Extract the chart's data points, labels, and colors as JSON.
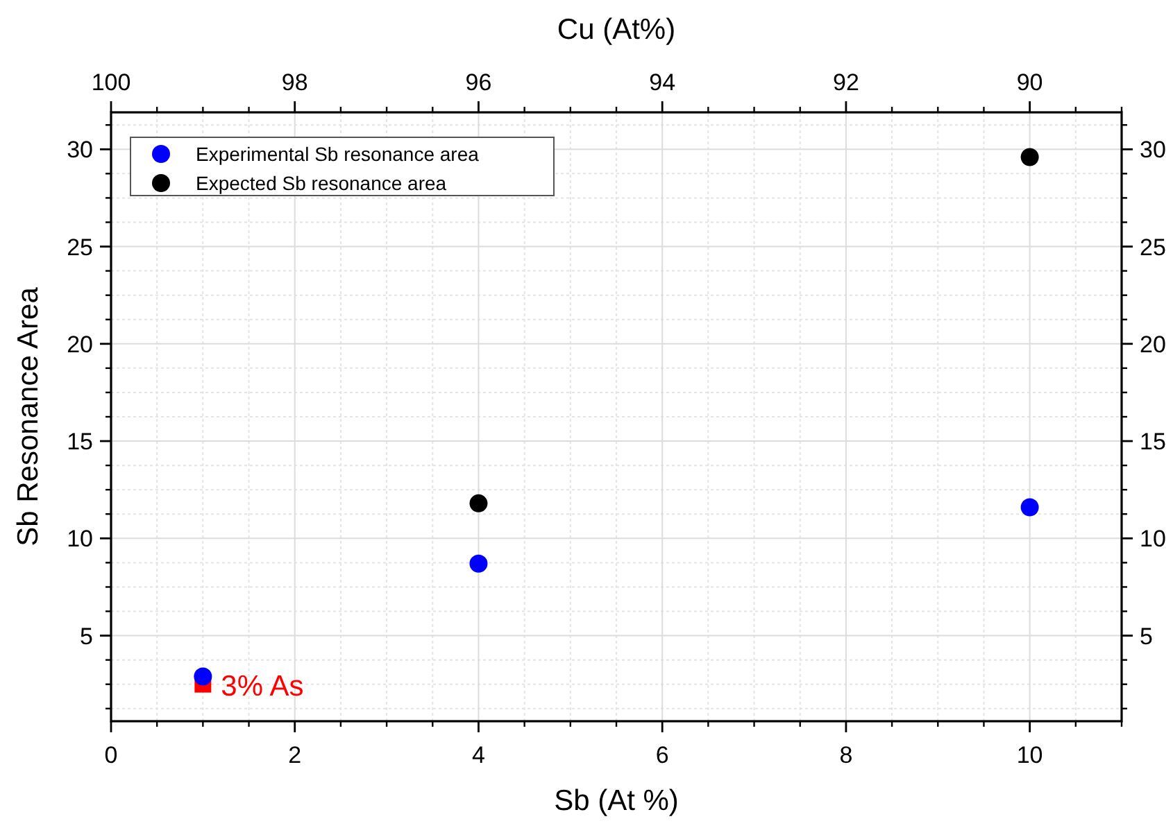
{
  "chart_data": {
    "type": "scatter",
    "xlabel": "Sb (At %)",
    "ylabel": "Sb Resonance Area",
    "x2label": "Cu (At%)",
    "x": [
      1,
      4,
      10
    ],
    "series": [
      {
        "color": "#ff0000",
        "x": [
          1
        ],
        "values": [
          2.5
        ],
        "marker": "square"
      },
      {
        "name": "Experimental Sb resonance area",
        "color": "#0000ff",
        "values": [
          2.9,
          8.7,
          11.6
        ],
        "marker": "circle"
      },
      {
        "name": "Expected Sb resonance area",
        "color": "#000000",
        "values": [
          null,
          11.8,
          29.6
        ],
        "marker": "circle"
      }
    ],
    "annotations": [
      {
        "text": "3% As",
        "x": 1,
        "y": 2.5
      }
    ],
    "xlim": [
      0,
      11
    ],
    "xticks": [
      0,
      2,
      4,
      6,
      8,
      10
    ],
    "x2lim": [
      100,
      89
    ],
    "x2ticks": [
      100,
      98,
      96,
      94,
      92,
      90
    ],
    "ylim": [
      0.6,
      31.9
    ],
    "yticks": [
      5,
      10,
      15,
      20,
      25,
      30
    ],
    "y2lim": [
      0.6,
      31.9
    ],
    "y2ticks": [
      5,
      10,
      15,
      20,
      25,
      30
    ],
    "grid": true,
    "legend": "top left"
  }
}
